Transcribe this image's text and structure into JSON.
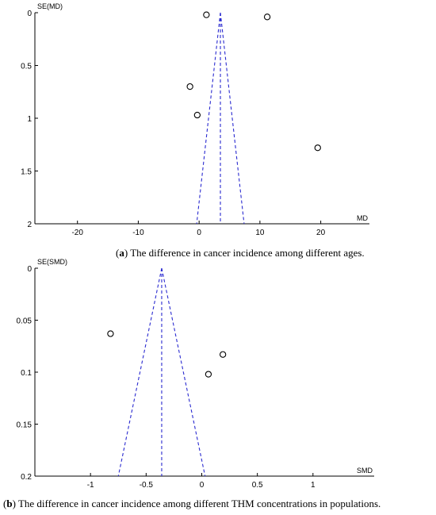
{
  "chart_data": [
    {
      "type": "scatter",
      "subtype": "funnel-plot",
      "ylabel": "SE(MD)",
      "xlabel": "MD",
      "xlim": [
        -27,
        28
      ],
      "ylim": [
        0,
        2
      ],
      "y_inverted": true,
      "x_ticks": [
        -20,
        -10,
        0,
        10,
        20
      ],
      "y_ticks": [
        0,
        0.5,
        1,
        1.5,
        2
      ],
      "y_tick_labels": [
        "0",
        "0.5",
        "1",
        "1.5",
        "2"
      ],
      "pooled_estimate": 3.5,
      "funnel": {
        "apex": [
          3.5,
          0
        ],
        "base_left": [
          -0.4,
          2
        ],
        "base_right": [
          7.4,
          2
        ]
      },
      "points": [
        {
          "x": 1.2,
          "y": 0.02
        },
        {
          "x": 11.2,
          "y": 0.04
        },
        {
          "x": -1.5,
          "y": 0.7
        },
        {
          "x": -0.3,
          "y": 0.97
        },
        {
          "x": 19.5,
          "y": 1.28
        }
      ],
      "caption_label": "a",
      "caption_text": "The difference in cancer incidence among different ages."
    },
    {
      "type": "scatter",
      "subtype": "funnel-plot",
      "ylabel": "SE(SMD)",
      "xlabel": "SMD",
      "xlim": [
        -1.5,
        1.55
      ],
      "ylim": [
        0,
        0.2
      ],
      "y_inverted": true,
      "x_ticks": [
        -1,
        -0.5,
        0,
        0.5,
        1
      ],
      "x_tick_labels": [
        "-1",
        "-0.5",
        "0",
        "0.5",
        "1"
      ],
      "y_ticks": [
        0,
        0.05,
        0.1,
        0.15,
        0.2
      ],
      "y_tick_labels": [
        "0",
        "0.05",
        "0.1",
        "0.15",
        "0.2"
      ],
      "pooled_estimate": -0.36,
      "funnel": {
        "apex": [
          -0.36,
          0
        ],
        "base_left": [
          -0.75,
          0.2
        ],
        "base_right": [
          0.03,
          0.2
        ]
      },
      "points": [
        {
          "x": -0.82,
          "y": 0.063
        },
        {
          "x": 0.19,
          "y": 0.083
        },
        {
          "x": 0.06,
          "y": 0.102
        }
      ],
      "caption_label": "b",
      "caption_text": "The difference in cancer incidence among different THM concentrations in populations."
    }
  ]
}
